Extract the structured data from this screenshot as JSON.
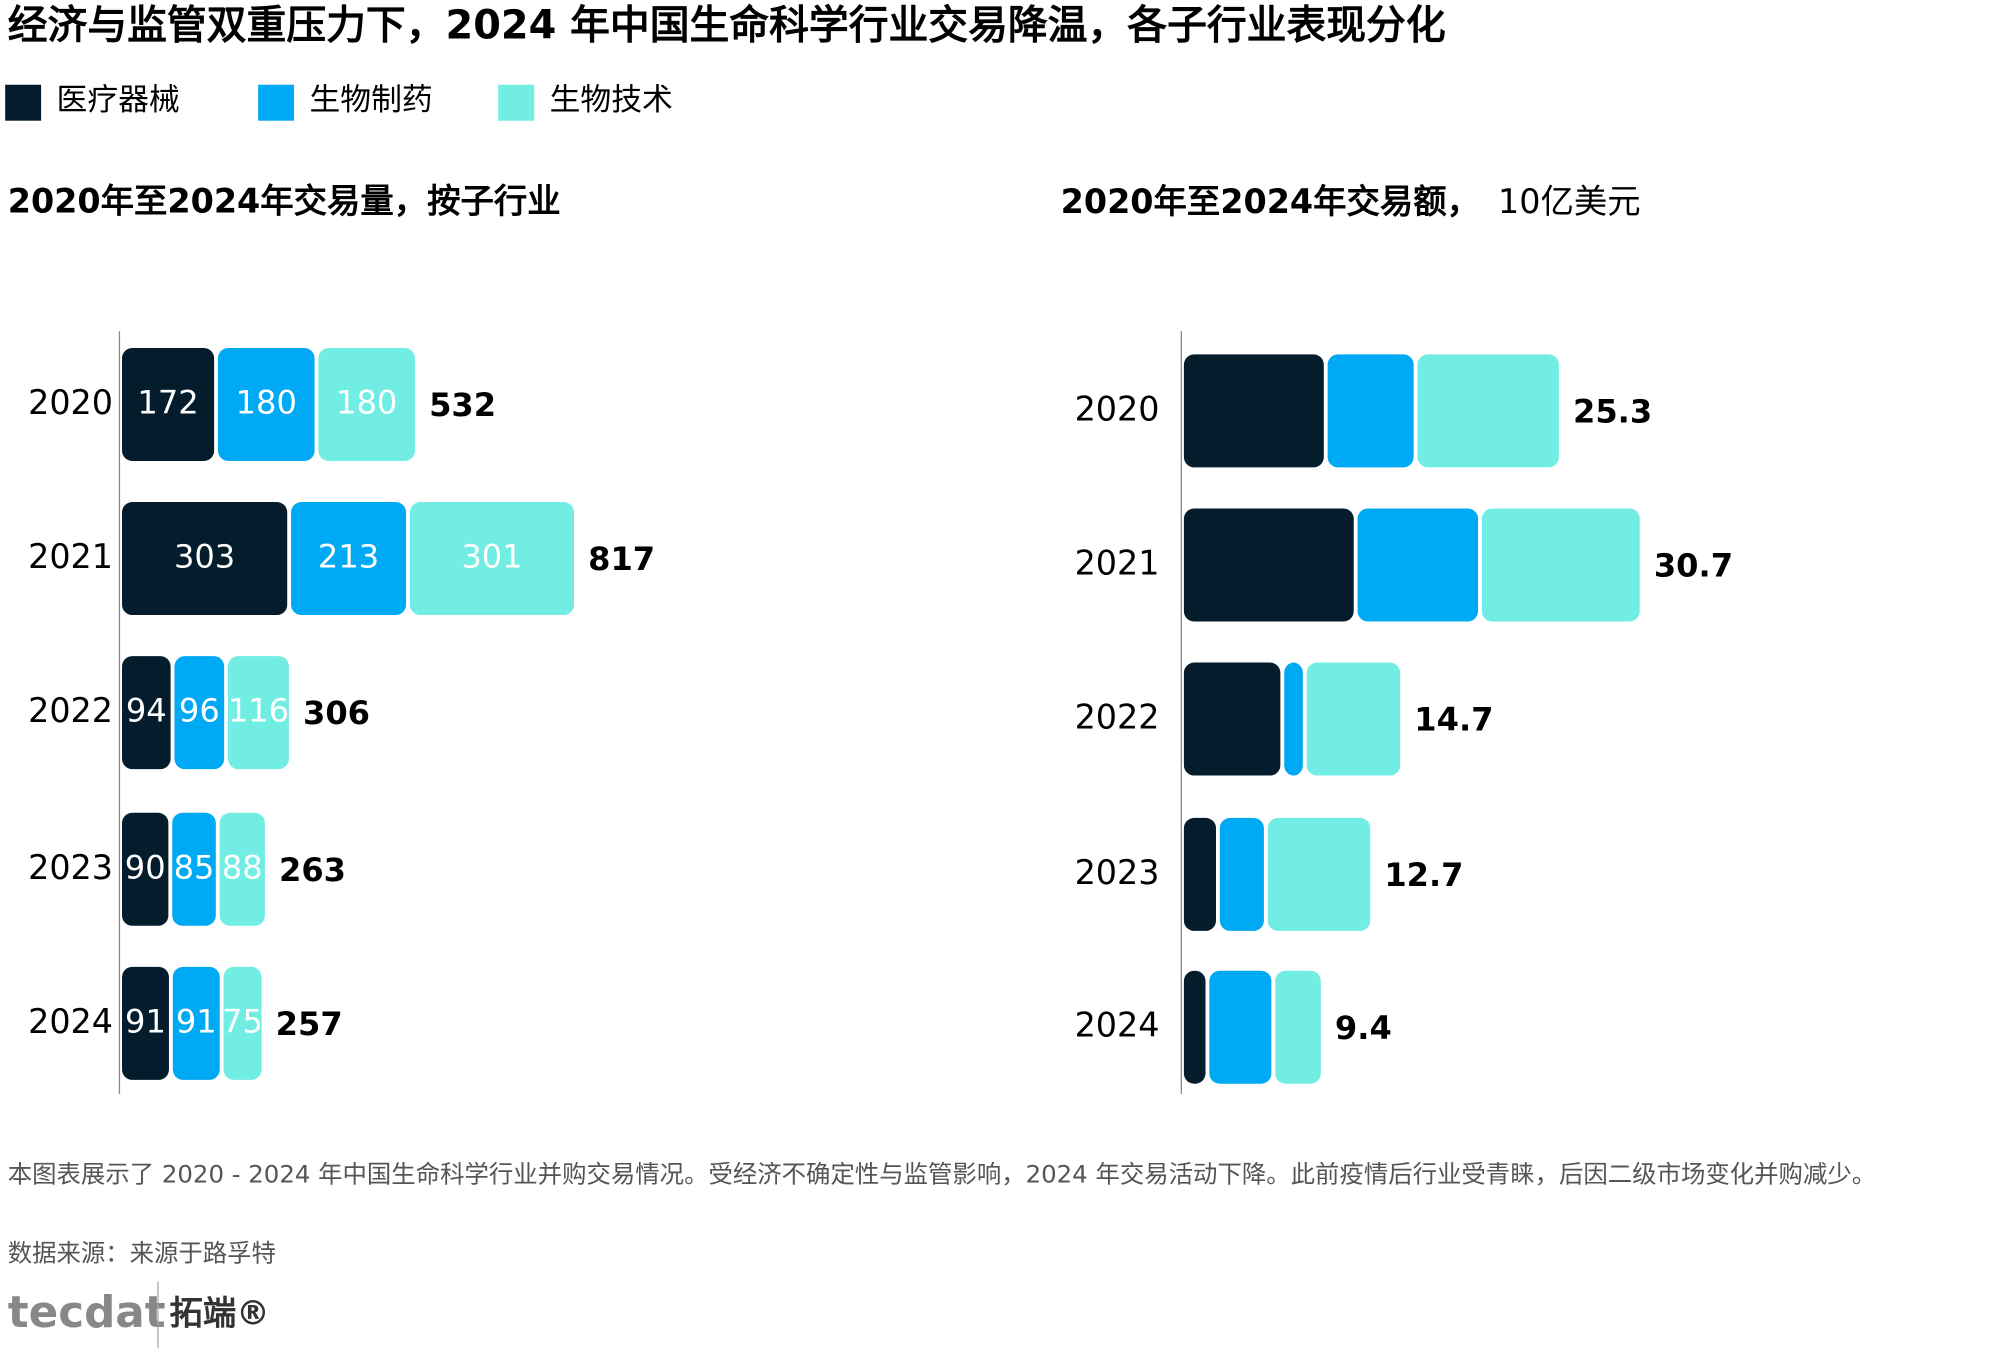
{
  "title": "经济与监管双重压力下，2024 年中国生命科学行业交易降温，各子行业表现分化",
  "chart_data": [
    {
      "type": "stacked-bar",
      "title": "2020年至2024年交易量，按子行业",
      "categories": [
        "2020",
        "2021",
        "2022",
        "2023",
        "2024"
      ],
      "series": [
        {
          "name": "医疗器械",
          "color": "#041c2c",
          "values": [
            172,
            303,
            94,
            90,
            91
          ]
        },
        {
          "name": "生物制药",
          "color": "#00a9f4",
          "values": [
            180,
            213,
            96,
            85,
            91
          ]
        },
        {
          "name": "生物技术",
          "color": "#71ede3",
          "values": [
            180,
            301,
            116,
            88,
            75
          ]
        }
      ],
      "totals": [
        532,
        817,
        306,
        263,
        257
      ],
      "show_segment_labels": true
    },
    {
      "type": "stacked-bar",
      "title": "2020年至2024年交易额，",
      "unit": "10亿美元",
      "categories": [
        "2020",
        "2021",
        "2022",
        "2023",
        "2024"
      ],
      "series": [
        {
          "name": "医疗器械",
          "color": "#041c2c",
          "values": [
            9.6,
            11.6,
            6.7,
            2.4,
            1.7
          ]
        },
        {
          "name": "生物制药",
          "color": "#00a9f4",
          "values": [
            6.0,
            8.3,
            1.5,
            3.2,
            4.4
          ]
        },
        {
          "name": "生物技术",
          "color": "#71ede3",
          "values": [
            9.7,
            10.8,
            6.5,
            7.1,
            3.3
          ]
        }
      ],
      "totals": [
        25.3,
        30.7,
        14.7,
        12.7,
        9.4
      ],
      "show_segment_labels": false
    }
  ],
  "note": "本图表展示了 2020 - 2024 年中国生命科学行业并购交易情况。受经济不确定性与监管影响，2024 年交易活动下降。此前疫情后行业受青睐，后因二级市场变化并购减少。",
  "source": "数据来源：来源于路孚特",
  "logo": {
    "brand": "tecdat",
    "name": "拓端®"
  }
}
